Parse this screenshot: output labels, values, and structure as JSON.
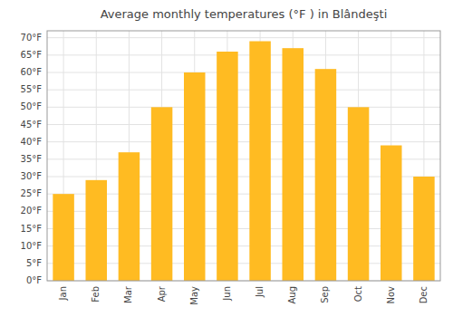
{
  "chart_data": {
    "type": "bar",
    "title": "Average monthly temperatures (°F ) in Blândeşti",
    "categories": [
      "Jan",
      "Feb",
      "Mar",
      "Apr",
      "May",
      "Jun",
      "Jul",
      "Aug",
      "Sep",
      "Oct",
      "Nov",
      "Dec"
    ],
    "values": [
      25,
      29,
      37,
      50,
      60,
      66,
      69,
      67,
      61,
      50,
      39,
      30
    ],
    "color": "#FFBB22",
    "ylim": [
      0,
      72
    ],
    "yticks": [
      {
        "value": 0,
        "label": "0°F"
      },
      {
        "value": 5,
        "label": "5°F"
      },
      {
        "value": 10,
        "label": "10°F"
      },
      {
        "value": 15,
        "label": "15°F"
      },
      {
        "value": 20,
        "label": "20°F"
      },
      {
        "value": 25,
        "label": "25°F"
      },
      {
        "value": 30,
        "label": "30°F"
      },
      {
        "value": 35,
        "label": "35°F"
      },
      {
        "value": 40,
        "label": "40°F"
      },
      {
        "value": 45,
        "label": "45°F"
      },
      {
        "value": 50,
        "label": "50°F"
      },
      {
        "value": 55,
        "label": "55°F"
      },
      {
        "value": 60,
        "label": "60°F"
      },
      {
        "value": 65,
        "label": "65°F"
      },
      {
        "value": 70,
        "label": "70°F"
      }
    ],
    "grid": true
  }
}
